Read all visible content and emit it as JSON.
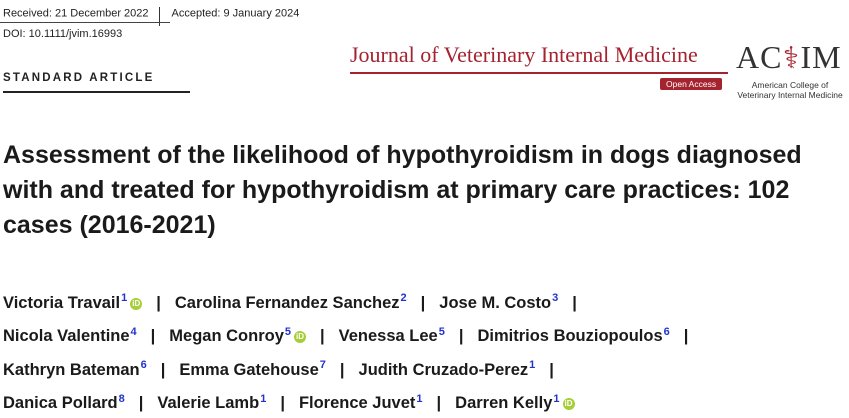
{
  "header": {
    "received": "Received: 21 December 2022",
    "accepted": "Accepted: 9 January 2024",
    "doi": "DOI: 10.1111/jvim.16993"
  },
  "article_type": "STANDARD ARTICLE",
  "journal": {
    "name": "Journal of Veterinary Internal Medicine",
    "badge": "Open Access",
    "logo_text": "ACVIM",
    "logo_subtitle_1": "American College of",
    "logo_subtitle_2": "Veterinary Internal Medicine",
    "brand_color": "#a4232f"
  },
  "title": "Assessment of the likelihood of hypothyroidism in dogs diagnosed with and treated for hypothyroidism at primary care practices: 102 cases (2016-2021)",
  "authors": [
    {
      "name": "Victoria Travail",
      "aff": "1",
      "orcid": true
    },
    {
      "name": "Carolina Fernandez Sanchez",
      "aff": "2",
      "orcid": false
    },
    {
      "name": "Jose M. Costo",
      "aff": "3",
      "orcid": false
    },
    {
      "name": "Nicola Valentine",
      "aff": "4",
      "orcid": false
    },
    {
      "name": "Megan Conroy",
      "aff": "5",
      "orcid": true
    },
    {
      "name": "Venessa Lee",
      "aff": "5",
      "orcid": false
    },
    {
      "name": "Dimitrios Bouziopoulos",
      "aff": "6",
      "orcid": false
    },
    {
      "name": "Kathryn Bateman",
      "aff": "6",
      "orcid": false
    },
    {
      "name": "Emma Gatehouse",
      "aff": "7",
      "orcid": false
    },
    {
      "name": "Judith Cruzado-Perez",
      "aff": "1",
      "orcid": false
    },
    {
      "name": "Danica Pollard",
      "aff": "8",
      "orcid": false
    },
    {
      "name": "Valerie Lamb",
      "aff": "1",
      "orcid": false
    },
    {
      "name": "Florence Juvet",
      "aff": "1",
      "orcid": false
    },
    {
      "name": "Darren Kelly",
      "aff": "1",
      "orcid": true
    }
  ],
  "separator": "|",
  "orcid_icon": "orcid-icon"
}
